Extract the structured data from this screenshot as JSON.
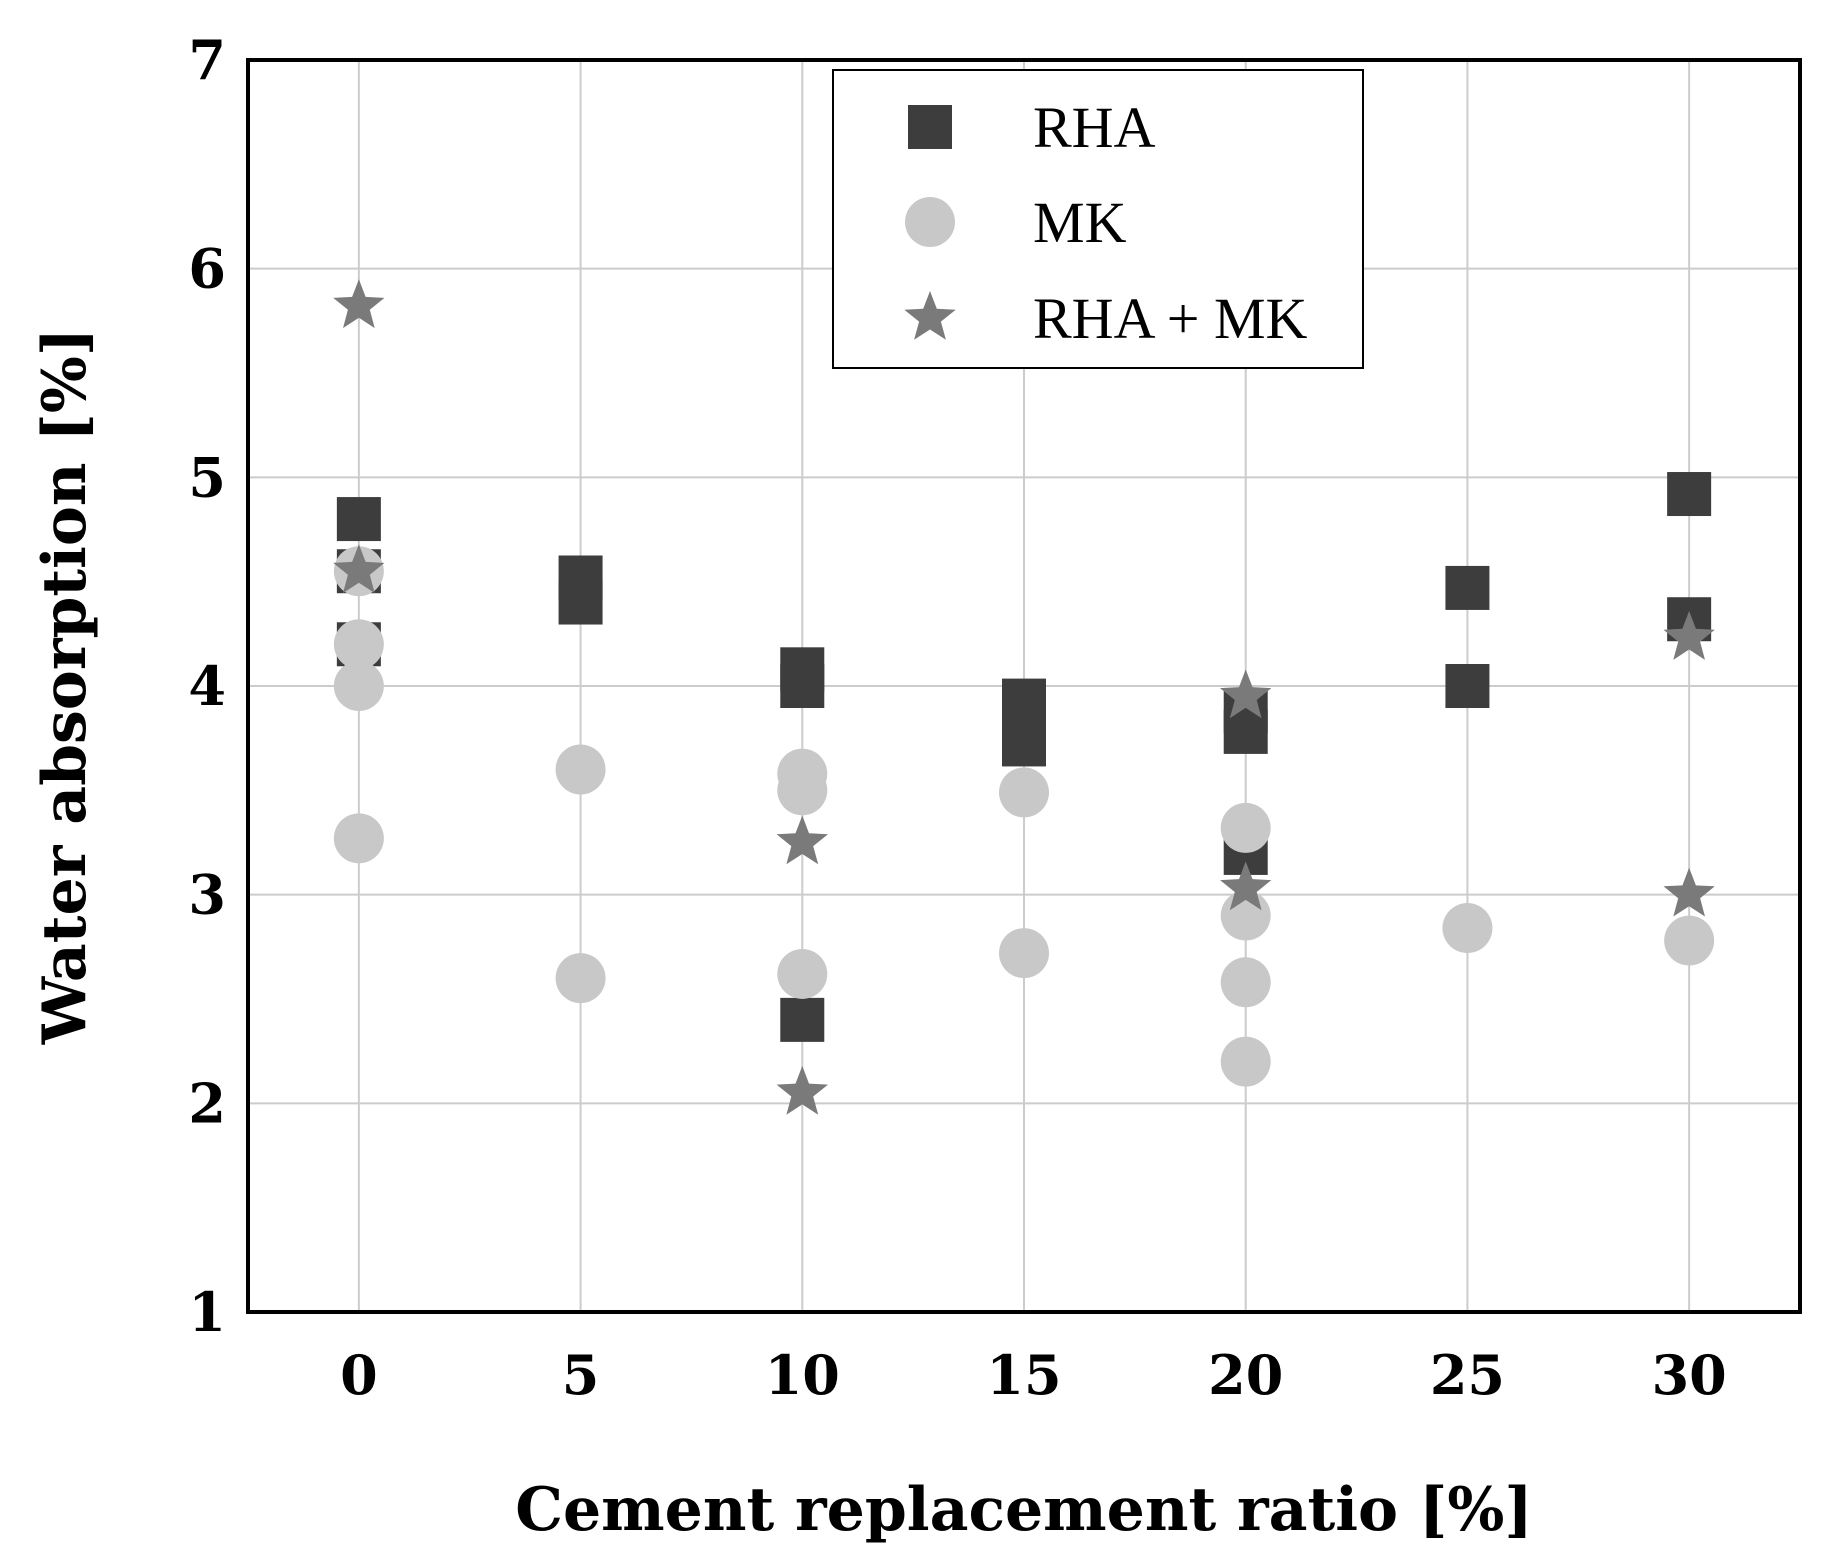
{
  "chart_data": {
    "type": "scatter",
    "title": "",
    "xlabel": "Cement replacement ratio [%]",
    "ylabel": "Water absorption [%]",
    "xlim": [
      -2.5,
      32.5
    ],
    "ylim": [
      1,
      7
    ],
    "xticks": [
      0,
      5,
      10,
      15,
      20,
      25,
      30
    ],
    "yticks": [
      1,
      2,
      3,
      4,
      5,
      6,
      7
    ],
    "grid": true,
    "legend_position": "top-center",
    "series": [
      {
        "name": "RHA",
        "marker": "square",
        "color": "#3d3d3d",
        "points": [
          {
            "x": 0,
            "y": 4.8
          },
          {
            "x": 0,
            "y": 4.55
          },
          {
            "x": 0,
            "y": 4.2
          },
          {
            "x": 5,
            "y": 4.52
          },
          {
            "x": 5,
            "y": 4.4
          },
          {
            "x": 10,
            "y": 4.08
          },
          {
            "x": 10,
            "y": 4.0
          },
          {
            "x": 10,
            "y": 2.4
          },
          {
            "x": 15,
            "y": 3.93
          },
          {
            "x": 15,
            "y": 3.72
          },
          {
            "x": 20,
            "y": 3.88
          },
          {
            "x": 20,
            "y": 3.78
          },
          {
            "x": 20,
            "y": 3.2
          },
          {
            "x": 25,
            "y": 4.47
          },
          {
            "x": 25,
            "y": 4.0
          },
          {
            "x": 30,
            "y": 4.92
          },
          {
            "x": 30,
            "y": 4.32
          }
        ]
      },
      {
        "name": "MK",
        "marker": "circle",
        "color": "#c8c8c8",
        "points": [
          {
            "x": 0,
            "y": 4.55
          },
          {
            "x": 0,
            "y": 4.2
          },
          {
            "x": 0,
            "y": 4.0
          },
          {
            "x": 0,
            "y": 3.27
          },
          {
            "x": 5,
            "y": 3.6
          },
          {
            "x": 5,
            "y": 2.6
          },
          {
            "x": 10,
            "y": 3.58
          },
          {
            "x": 10,
            "y": 3.5
          },
          {
            "x": 10,
            "y": 2.62
          },
          {
            "x": 15,
            "y": 3.49
          },
          {
            "x": 15,
            "y": 2.72
          },
          {
            "x": 20,
            "y": 3.32
          },
          {
            "x": 20,
            "y": 2.9
          },
          {
            "x": 20,
            "y": 2.58
          },
          {
            "x": 20,
            "y": 2.2
          },
          {
            "x": 25,
            "y": 2.84
          },
          {
            "x": 30,
            "y": 2.78
          }
        ]
      },
      {
        "name": "RHA + MK",
        "marker": "star",
        "color": "#7a7a7a",
        "points": [
          {
            "x": 0,
            "y": 5.82
          },
          {
            "x": 0,
            "y": 4.55
          },
          {
            "x": 10,
            "y": 3.25
          },
          {
            "x": 10,
            "y": 2.05
          },
          {
            "x": 20,
            "y": 3.95
          },
          {
            "x": 20,
            "y": 3.03
          },
          {
            "x": 30,
            "y": 4.23
          },
          {
            "x": 30,
            "y": 3.0
          }
        ]
      }
    ]
  }
}
